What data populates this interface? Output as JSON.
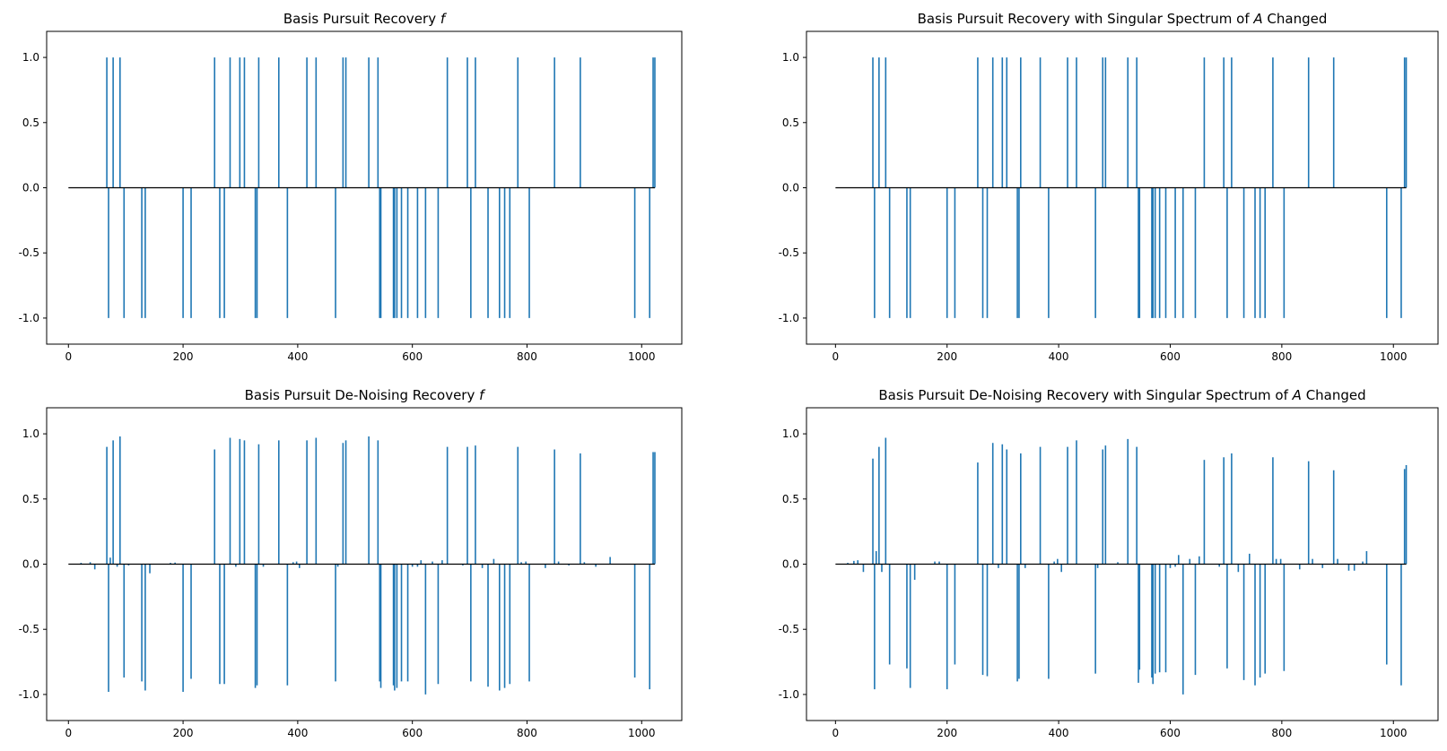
{
  "figure": {
    "stem_color": "#1f77b4",
    "baseline_color": "#000000"
  },
  "chart_data": [
    {
      "type": "stem",
      "title": "Basis Pursuit Recovery f",
      "title_main": "Basis Pursuit Recovery ",
      "title_italic": "f",
      "title_tail": "",
      "xlim": [
        -38,
        1070
      ],
      "ylim": [
        -1.2,
        1.2
      ],
      "xticks": [
        0,
        200,
        400,
        600,
        800,
        1000
      ],
      "yticks": [
        -1.0,
        -0.5,
        0.0,
        0.5,
        1.0
      ],
      "ytick_labels": [
        "-1.0",
        "-0.5",
        "0.0",
        "0.5",
        "1.0"
      ],
      "grid": false,
      "x": [
        67,
        70,
        78,
        90,
        97,
        128,
        134,
        200,
        214,
        255,
        264,
        272,
        282,
        299,
        307,
        326,
        329,
        332,
        367,
        382,
        416,
        432,
        466,
        479,
        484,
        524,
        540,
        543,
        545,
        567,
        569,
        573,
        581,
        592,
        609,
        623,
        645,
        661,
        696,
        702,
        710,
        732,
        752,
        761,
        770,
        784,
        804,
        848,
        893,
        988,
        1014,
        1020,
        1023
      ],
      "y": [
        1,
        -1,
        1,
        1,
        -1,
        -1,
        -1,
        -1,
        -1,
        1,
        -1,
        -1,
        1,
        1,
        1,
        -1,
        -1,
        1,
        1,
        -1,
        1,
        1,
        -1,
        1,
        1,
        1,
        1,
        -1,
        -1,
        -1,
        -1,
        -1,
        -1,
        -1,
        -1,
        -1,
        -1,
        1,
        1,
        -1,
        1,
        -1,
        -1,
        -1,
        -1,
        1,
        -1,
        1,
        1,
        -1,
        -1,
        1,
        1
      ]
    },
    {
      "type": "stem",
      "title": "Basis Pursuit Recovery with Singular Spectrum of A Changed",
      "title_main": "Basis Pursuit Recovery with Singular Spectrum of ",
      "title_italic": "A",
      "title_tail": " Changed",
      "xlim": [
        -52,
        1080
      ],
      "ylim": [
        -1.2,
        1.2
      ],
      "xticks": [
        0,
        200,
        400,
        600,
        800,
        1000
      ],
      "yticks": [
        -1.0,
        -0.5,
        0.0,
        0.5,
        1.0
      ],
      "ytick_labels": [
        "-1.0",
        "-0.5",
        "0.0",
        "0.5",
        "1.0"
      ],
      "grid": false,
      "x": [
        67,
        70,
        78,
        90,
        97,
        128,
        134,
        200,
        214,
        255,
        264,
        272,
        282,
        299,
        307,
        326,
        329,
        332,
        367,
        382,
        416,
        432,
        466,
        479,
        484,
        524,
        540,
        543,
        545,
        567,
        569,
        573,
        581,
        592,
        609,
        623,
        645,
        661,
        696,
        702,
        710,
        732,
        752,
        761,
        770,
        784,
        804,
        848,
        893,
        988,
        1014,
        1020,
        1023
      ],
      "y": [
        1,
        -1,
        1,
        1,
        -1,
        -1,
        -1,
        -1,
        -1,
        1,
        -1,
        -1,
        1,
        1,
        1,
        -1,
        -1,
        1,
        1,
        -1,
        1,
        1,
        -1,
        1,
        1,
        1,
        1,
        -1,
        -1,
        -1,
        -1,
        -1,
        -1,
        -1,
        -1,
        -1,
        -1,
        1,
        1,
        -1,
        1,
        -1,
        -1,
        -1,
        -1,
        1,
        -1,
        1,
        1,
        -1,
        -1,
        1,
        1
      ]
    },
    {
      "type": "stem",
      "title": "Basis Pursuit De-Noising Recovery f",
      "title_main": "Basis Pursuit De-Noising Recovery ",
      "title_italic": "f",
      "title_tail": "",
      "xlim": [
        -38,
        1070
      ],
      "ylim": [
        -1.2,
        1.2
      ],
      "xticks": [
        0,
        200,
        400,
        600,
        800,
        1000
      ],
      "yticks": [
        -1.0,
        -0.5,
        0.0,
        0.5,
        1.0
      ],
      "ytick_labels": [
        "-1.0",
        "-0.5",
        "0.0",
        "0.5",
        "1.0"
      ],
      "grid": false,
      "x": [
        22,
        38,
        46,
        67,
        70,
        73,
        78,
        85,
        90,
        97,
        105,
        128,
        134,
        142,
        178,
        186,
        200,
        214,
        255,
        264,
        272,
        282,
        292,
        299,
        307,
        326,
        329,
        332,
        340,
        367,
        382,
        392,
        398,
        403,
        416,
        432,
        466,
        470,
        479,
        484,
        524,
        540,
        543,
        545,
        567,
        569,
        573,
        581,
        592,
        600,
        609,
        615,
        623,
        635,
        645,
        652,
        661,
        688,
        696,
        702,
        710,
        722,
        732,
        742,
        752,
        761,
        770,
        784,
        790,
        798,
        804,
        832,
        848,
        855,
        873,
        893,
        900,
        920,
        945,
        988,
        1014,
        1020,
        1023
      ],
      "y": [
        0.01,
        0.015,
        -0.04,
        0.9,
        -0.98,
        0.05,
        0.95,
        -0.02,
        0.98,
        -0.87,
        -0.01,
        -0.9,
        -0.97,
        -0.07,
        0.01,
        0.012,
        -0.98,
        -0.88,
        0.88,
        -0.92,
        -0.92,
        0.97,
        -0.02,
        0.96,
        0.95,
        -0.95,
        -0.93,
        0.92,
        -0.02,
        0.95,
        -0.93,
        0.015,
        0.02,
        -0.03,
        0.95,
        0.97,
        -0.9,
        -0.02,
        0.93,
        0.95,
        0.98,
        0.95,
        -0.9,
        -0.95,
        -0.93,
        -0.97,
        -0.95,
        -0.9,
        -0.9,
        -0.02,
        -0.02,
        0.03,
        -1.0,
        0.02,
        -0.92,
        0.03,
        0.9,
        -0.01,
        0.9,
        -0.9,
        0.91,
        -0.03,
        -0.94,
        0.04,
        -0.97,
        -0.95,
        -0.92,
        0.9,
        0.015,
        0.02,
        -0.9,
        -0.03,
        0.88,
        0.02,
        -0.01,
        0.85,
        0.015,
        -0.02,
        0.055,
        -0.87,
        -0.96,
        0.86,
        0.86
      ]
    },
    {
      "type": "stem",
      "title": "Basis Pursuit De-Noising Recovery with Singular Spectrum of A Changed",
      "title_main": "Basis Pursuit De-Noising Recovery with Singular Spectrum of ",
      "title_italic": "A",
      "title_tail": " Changed",
      "xlim": [
        -52,
        1080
      ],
      "ylim": [
        -1.2,
        1.2
      ],
      "xticks": [
        0,
        200,
        400,
        600,
        800,
        1000
      ],
      "yticks": [
        -1.0,
        -0.5,
        0.0,
        0.5,
        1.0
      ],
      "ytick_labels": [
        "-1.0",
        "-0.5",
        "0.0",
        "0.5",
        "1.0"
      ],
      "grid": false,
      "x": [
        22,
        33,
        40,
        50,
        67,
        70,
        73,
        78,
        83,
        90,
        97,
        128,
        134,
        142,
        178,
        186,
        200,
        214,
        255,
        264,
        272,
        282,
        292,
        299,
        307,
        326,
        329,
        332,
        340,
        367,
        382,
        392,
        398,
        405,
        416,
        432,
        466,
        470,
        479,
        484,
        506,
        524,
        540,
        543,
        545,
        567,
        569,
        573,
        581,
        592,
        600,
        609,
        615,
        623,
        635,
        645,
        652,
        661,
        688,
        696,
        702,
        710,
        722,
        732,
        742,
        752,
        761,
        770,
        784,
        790,
        798,
        804,
        832,
        848,
        855,
        873,
        893,
        900,
        920,
        930,
        945,
        952,
        988,
        1014,
        1020,
        1023
      ],
      "y": [
        0.01,
        0.025,
        0.03,
        -0.06,
        0.81,
        -0.96,
        0.1,
        0.9,
        -0.06,
        0.97,
        -0.77,
        -0.8,
        -0.95,
        -0.12,
        0.02,
        0.02,
        -0.96,
        -0.77,
        0.78,
        -0.85,
        -0.86,
        0.93,
        -0.03,
        0.92,
        0.88,
        -0.9,
        -0.88,
        0.85,
        -0.03,
        0.9,
        -0.88,
        0.02,
        0.04,
        -0.06,
        0.9,
        0.95,
        -0.84,
        -0.03,
        0.88,
        0.91,
        0.015,
        0.96,
        0.9,
        -0.91,
        -0.81,
        -0.87,
        -0.92,
        -0.84,
        -0.83,
        -0.83,
        -0.03,
        -0.02,
        0.07,
        -1.0,
        0.04,
        -0.85,
        0.06,
        0.8,
        -0.02,
        0.82,
        -0.8,
        0.85,
        -0.06,
        -0.89,
        0.08,
        -0.93,
        -0.87,
        -0.84,
        0.82,
        0.04,
        0.04,
        -0.82,
        -0.04,
        0.79,
        0.04,
        -0.03,
        0.72,
        0.04,
        -0.05,
        -0.05,
        0.02,
        0.1,
        -0.77,
        -0.93,
        0.73,
        0.76
      ]
    }
  ]
}
